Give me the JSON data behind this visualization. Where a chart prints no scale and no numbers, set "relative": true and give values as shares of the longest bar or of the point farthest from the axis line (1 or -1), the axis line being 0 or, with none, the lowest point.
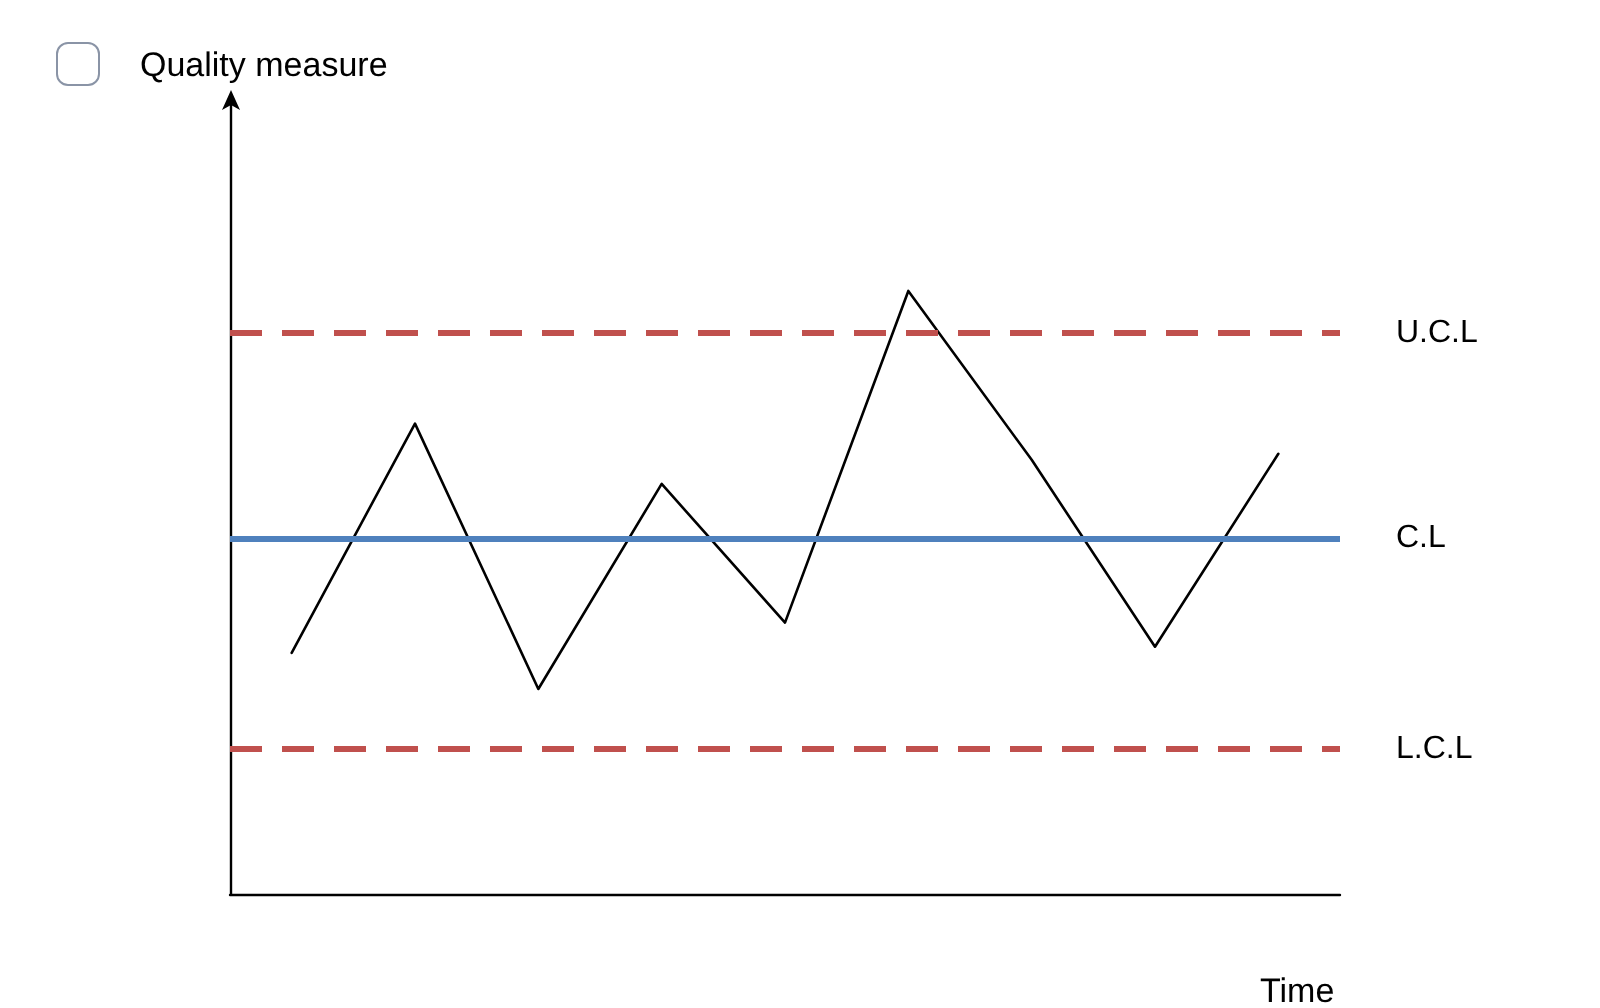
{
  "chart_data": {
    "type": "line",
    "relative": true,
    "xlabel": "Time",
    "annotations": [
      "Quality measure"
    ],
    "categories": [
      null,
      null,
      null,
      null,
      null,
      null,
      null,
      null,
      null
    ],
    "series": [
      {
        "color": "#000000",
        "values": [
          0.4,
          0.78,
          0.34,
          0.68,
          0.45,
          1,
          0.72,
          0.41,
          0.73
        ]
      }
    ],
    "ref_lines": [
      {
        "axis": "y",
        "value": 0.93,
        "label": "U.C.L",
        "color": "#c0504d",
        "line_style": "dashed"
      },
      {
        "axis": "y",
        "value": 0.59,
        "label": "C.L",
        "color": "#4f81bd",
        "line_style": "solid"
      },
      {
        "axis": "y",
        "value": 0.24,
        "label": "L.C.L",
        "color": "#c0504d",
        "line_style": "dashed"
      }
    ],
    "grid": false,
    "marker": "none",
    "line_style": "solid"
  }
}
